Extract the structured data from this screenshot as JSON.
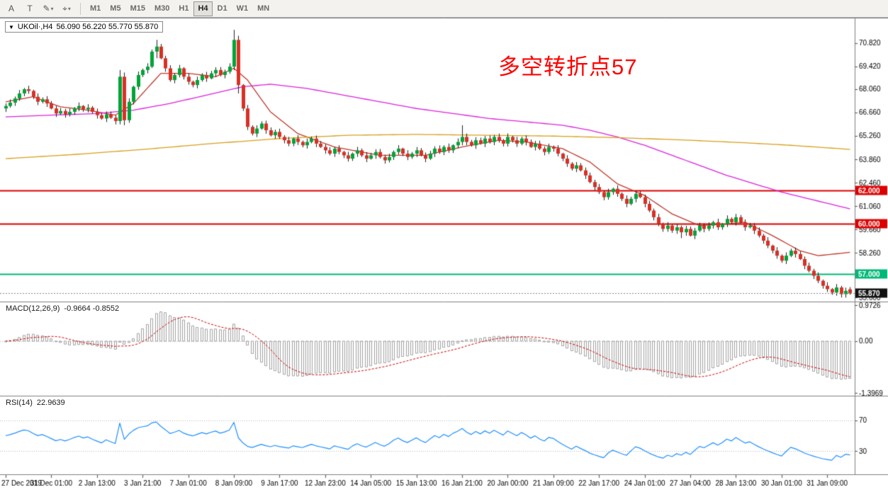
{
  "toolbar": {
    "tools": [
      {
        "name": "cursor",
        "glyph": "A",
        "dropdown": false
      },
      {
        "name": "text",
        "glyph": "T",
        "dropdown": false
      },
      {
        "name": "draw",
        "glyph": "✎",
        "dropdown": true
      },
      {
        "name": "crosshair",
        "glyph": "⌖",
        "dropdown": true
      }
    ],
    "timeframes": [
      "M1",
      "M5",
      "M15",
      "M30",
      "H1",
      "H4",
      "D1",
      "W1",
      "MN"
    ],
    "active_timeframe": "H4"
  },
  "chart": {
    "title": "UKOil·,H4",
    "ohlc": "56.090 56.220 55.770 55.870",
    "annotation": {
      "text": "多空转折点57",
      "color": "#ff0000"
    },
    "macd_label": "MACD(12,26,9)",
    "macd_values": "-0.9664 -0.8552",
    "rsi_label": "RSI(14)",
    "rsi_value": "22.9639"
  },
  "chart_data": {
    "type": "candlestick",
    "title": "UKOil·,H4",
    "symbol": "UKOil",
    "timeframe": "H4",
    "price_range": [
      55.4,
      72.2
    ],
    "price_axis_labels": [
      "70.820",
      "69.420",
      "68.060",
      "66.660",
      "65.260",
      "63.860",
      "62.460",
      "61.060",
      "59.660",
      "58.260",
      "55.600"
    ],
    "x_label_step": 10,
    "x_labels": [
      "27 Dec 2019",
      "31 Dec 01:00",
      "2 Jan 13:00",
      "3 Jan 21:00",
      "7 Jan 01:00",
      "8 Jan 09:00",
      "9 Jan 17:00",
      "12 Jan 23:00",
      "14 Jan 05:00",
      "15 Jan 13:00",
      "16 Jan 21:00",
      "20 Jan 00:00",
      "21 Jan 09:00",
      "22 Jan 17:00",
      "24 Jan 01:00",
      "27 Jan 04:00",
      "28 Jan 13:00",
      "30 Jan 01:00",
      "31 Jan 09:00"
    ],
    "closes": [
      67.05,
      67.25,
      67.5,
      67.8,
      68.05,
      67.95,
      67.6,
      67.3,
      67.45,
      67.2,
      66.9,
      66.6,
      66.75,
      66.55,
      66.7,
      66.9,
      67.05,
      66.85,
      66.95,
      66.7,
      66.5,
      66.3,
      66.55,
      66.35,
      66.15,
      68.8,
      66.2,
      67.3,
      68.2,
      68.9,
      69.2,
      69.4,
      70.3,
      70.6,
      69.9,
      69.3,
      68.6,
      68.9,
      69.3,
      68.8,
      68.5,
      68.3,
      68.6,
      68.9,
      68.7,
      69.0,
      69.2,
      68.9,
      69.1,
      69.4,
      71.0,
      68.3,
      66.9,
      65.8,
      65.4,
      65.7,
      66.0,
      65.6,
      65.3,
      65.5,
      65.2,
      65.0,
      64.8,
      65.1,
      64.9,
      64.7,
      64.9,
      65.1,
      64.8,
      64.6,
      64.4,
      64.2,
      64.5,
      64.3,
      64.1,
      63.9,
      64.2,
      64.4,
      64.1,
      63.9,
      64.1,
      64.3,
      64.0,
      63.8,
      64.0,
      64.3,
      64.5,
      64.2,
      64.0,
      64.2,
      64.4,
      64.1,
      63.9,
      64.2,
      64.5,
      64.3,
      64.6,
      64.4,
      64.7,
      64.9,
      65.2,
      64.9,
      64.7,
      65.0,
      64.8,
      65.1,
      64.9,
      65.2,
      65.0,
      64.8,
      65.2,
      65.0,
      64.8,
      65.1,
      64.9,
      64.6,
      64.8,
      64.5,
      64.3,
      64.6,
      64.5,
      64.2,
      63.9,
      63.6,
      63.3,
      63.5,
      63.2,
      62.9,
      62.5,
      62.2,
      61.9,
      61.6,
      61.9,
      62.1,
      61.8,
      61.5,
      61.2,
      61.5,
      61.8,
      61.6,
      61.2,
      60.8,
      60.4,
      60.0,
      59.7,
      59.9,
      59.6,
      59.8,
      59.5,
      59.7,
      59.3,
      59.6,
      59.9,
      59.7,
      59.9,
      60.1,
      59.8,
      60.0,
      60.3,
      60.1,
      60.4,
      60.1,
      59.8,
      59.9,
      59.6,
      59.3,
      59.0,
      58.7,
      58.4,
      58.1,
      57.8,
      58.1,
      58.4,
      58.2,
      57.9,
      57.5,
      57.2,
      56.9,
      56.6,
      56.3,
      56.1,
      55.9,
      56.2,
      55.8,
      56.0,
      55.87
    ],
    "overrides": {
      "25": [
        66.15,
        69.2,
        65.95,
        68.8
      ],
      "26": [
        68.8,
        69.05,
        65.9,
        66.2
      ],
      "33": [
        70.3,
        71.0,
        69.9,
        70.6
      ],
      "50": [
        69.4,
        71.6,
        69.2,
        71.0
      ],
      "51": [
        71.0,
        71.25,
        67.8,
        68.3
      ],
      "100": [
        64.9,
        65.9,
        64.7,
        65.2
      ],
      "148": [
        59.8,
        59.9,
        59.15,
        59.5
      ],
      "183": [
        56.2,
        56.3,
        55.6,
        55.8
      ],
      "185": [
        56.09,
        56.22,
        55.77,
        55.87
      ]
    },
    "levels": [
      {
        "price": 62.0,
        "label": "62.000",
        "color": "#dd0000"
      },
      {
        "price": 60.0,
        "label": "60.000",
        "color": "#dd0000"
      },
      {
        "price": 57.0,
        "label": "57.000",
        "color": "#00b877"
      }
    ],
    "bid": {
      "price": 55.87,
      "label": "55.870",
      "color": "#111111"
    },
    "moving_averages": [
      {
        "name": "ma-fast",
        "color": "#c0392b",
        "points": [
          [
            0,
            67.3
          ],
          [
            6,
            67.6
          ],
          [
            12,
            67.0
          ],
          [
            18,
            66.8
          ],
          [
            24,
            66.5
          ],
          [
            28,
            67.2
          ],
          [
            34,
            69.0
          ],
          [
            40,
            69.0
          ],
          [
            46,
            68.8
          ],
          [
            50,
            69.3
          ],
          [
            53,
            68.6
          ],
          [
            58,
            66.7
          ],
          [
            64,
            65.4
          ],
          [
            72,
            64.6
          ],
          [
            82,
            64.1
          ],
          [
            92,
            64.1
          ],
          [
            100,
            64.6
          ],
          [
            108,
            65.0
          ],
          [
            114,
            64.9
          ],
          [
            122,
            64.5
          ],
          [
            128,
            63.7
          ],
          [
            134,
            62.4
          ],
          [
            140,
            61.7
          ],
          [
            146,
            60.6
          ],
          [
            152,
            59.9
          ],
          [
            158,
            60.0
          ],
          [
            162,
            60.1
          ],
          [
            168,
            59.3
          ],
          [
            174,
            58.4
          ],
          [
            178,
            58.1
          ],
          [
            185,
            58.3
          ]
        ]
      },
      {
        "name": "ma-mid",
        "color": "#dd22dd",
        "points": [
          [
            0,
            66.4
          ],
          [
            10,
            66.5
          ],
          [
            20,
            66.6
          ],
          [
            28,
            66.8
          ],
          [
            36,
            67.2
          ],
          [
            44,
            67.7
          ],
          [
            52,
            68.2
          ],
          [
            58,
            68.35
          ],
          [
            66,
            68.1
          ],
          [
            74,
            67.7
          ],
          [
            82,
            67.3
          ],
          [
            90,
            66.9
          ],
          [
            98,
            66.6
          ],
          [
            106,
            66.3
          ],
          [
            114,
            66.1
          ],
          [
            122,
            65.9
          ],
          [
            128,
            65.6
          ],
          [
            134,
            65.2
          ],
          [
            140,
            64.7
          ],
          [
            146,
            64.1
          ],
          [
            152,
            63.5
          ],
          [
            158,
            62.9
          ],
          [
            164,
            62.4
          ],
          [
            170,
            61.9
          ],
          [
            176,
            61.5
          ],
          [
            185,
            60.9
          ]
        ]
      },
      {
        "name": "ma-slow",
        "color": "#d8a01d",
        "points": [
          [
            0,
            63.9
          ],
          [
            15,
            64.15
          ],
          [
            30,
            64.45
          ],
          [
            45,
            64.8
          ],
          [
            60,
            65.1
          ],
          [
            75,
            65.3
          ],
          [
            90,
            65.35
          ],
          [
            105,
            65.3
          ],
          [
            120,
            65.25
          ],
          [
            135,
            65.15
          ],
          [
            150,
            65.0
          ],
          [
            162,
            64.85
          ],
          [
            172,
            64.7
          ],
          [
            180,
            64.55
          ],
          [
            185,
            64.45
          ]
        ]
      }
    ],
    "candle_colors": {
      "up": "#00a437",
      "down": "#d93025",
      "wick": "#222222"
    },
    "macd": {
      "fast": 12,
      "slow": 26,
      "signal": 9,
      "axis_labels": [
        "0.9726",
        "0.00",
        "-1.3969"
      ],
      "range": [
        -1.3969,
        0.9726
      ],
      "hist_color": "#a0a0a0",
      "signal_color": "#cc0000",
      "current_values": [
        -0.9664,
        -0.8552
      ]
    },
    "rsi": {
      "period": 14,
      "levels": [
        "70",
        "30"
      ],
      "color": "#1e90ff",
      "current_value": 22.9639
    }
  }
}
